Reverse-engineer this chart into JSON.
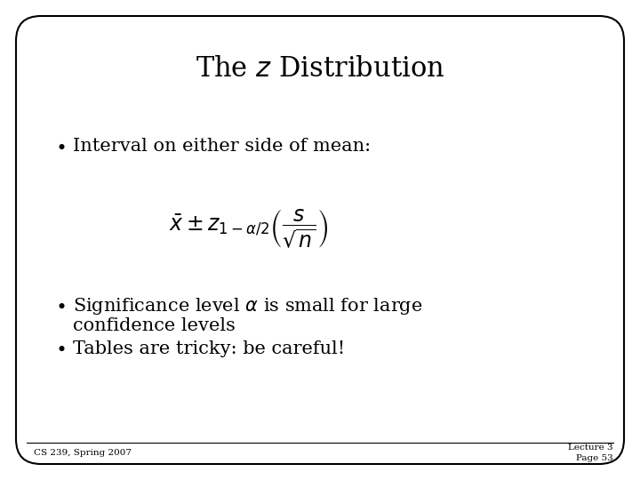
{
  "title": "The $z$ Distribution",
  "title_fontsize": 22,
  "bg_color": "#ffffff",
  "border_color": "#000000",
  "text_color": "#000000",
  "bullet1": "Interval on either side of mean:",
  "formula": "$\\bar{x} \\pm z_{1-\\alpha/2}\\left(\\dfrac{s}{\\sqrt{n}}\\right)$",
  "bullet2_line1": "Significance level $\\alpha$ is small for large",
  "bullet2_line2": "confidence levels",
  "bullet3": "Tables are tricky: be careful!",
  "footer_left": "CS 239, Spring 2007",
  "footer_right_line1": "Lecture 3",
  "footer_right_line2": "Page 53",
  "bullet_fontsize": 15,
  "formula_fontsize": 17,
  "footer_fontsize": 7.5
}
